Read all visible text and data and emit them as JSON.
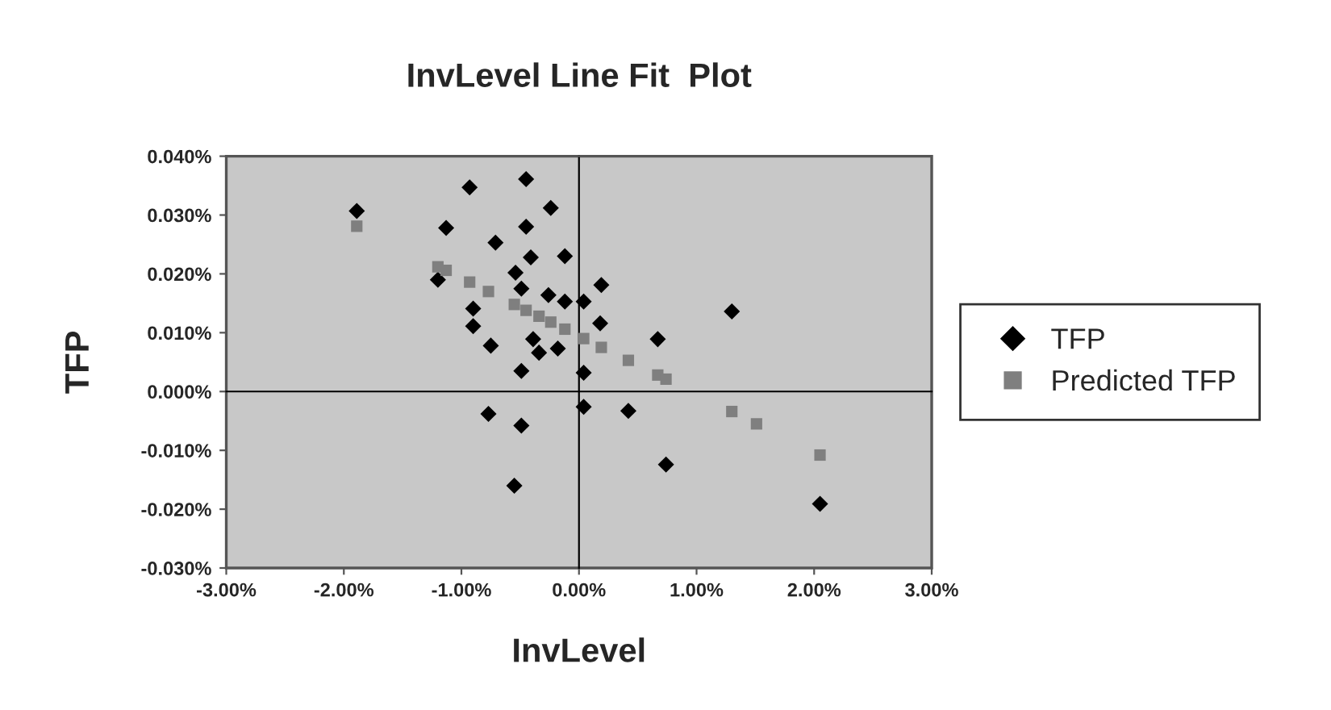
{
  "chart_data": {
    "type": "scatter",
    "title": "InvLevel Line Fit  Plot",
    "xlabel": "InvLevel",
    "ylabel": "TFP",
    "xlim": [
      -3,
      3
    ],
    "xticks": [
      {
        "value": -3,
        "label": "-3.00%"
      },
      {
        "value": -2,
        "label": "-2.00%"
      },
      {
        "value": -1,
        "label": "-1.00%"
      },
      {
        "value": 0,
        "label": "0.00%"
      },
      {
        "value": 1,
        "label": "1.00%"
      },
      {
        "value": 2,
        "label": "2.00%"
      },
      {
        "value": 3,
        "label": "3.00%"
      }
    ],
    "ylim": [
      -0.03,
      0.04
    ],
    "yticks": [
      {
        "value": -0.03,
        "label": "-0.030%"
      },
      {
        "value": -0.02,
        "label": "-0.020%"
      },
      {
        "value": -0.01,
        "label": "-0.010%"
      },
      {
        "value": 0,
        "label": "0.000%"
      },
      {
        "value": 0.01,
        "label": "0.010%"
      },
      {
        "value": 0.02,
        "label": "0.020%"
      },
      {
        "value": 0.03,
        "label": "0.030%"
      },
      {
        "value": 0.04,
        "label": "0.040%"
      }
    ],
    "legend": "right",
    "series": [
      {
        "name": "TFP",
        "color": "#000000",
        "marker": "diamond",
        "x": [
          -1.89,
          -0.93,
          -0.45,
          -1.13,
          -0.24,
          -0.71,
          -0.45,
          -0.41,
          -0.12,
          -0.54,
          -1.2,
          -0.49,
          -0.26,
          -0.9,
          -0.9,
          -0.75,
          -0.39,
          -0.34,
          -0.18,
          -0.49,
          -0.77,
          -0.49,
          -0.55,
          0.19,
          -0.12,
          0.04,
          0.18,
          1.3,
          0.67,
          0.04,
          0.04,
          0.42,
          0.74,
          2.05
        ],
        "values": [
          0.0307,
          0.0347,
          0.0361,
          0.0278,
          0.0312,
          0.0253,
          0.028,
          0.0228,
          0.023,
          0.0202,
          0.019,
          0.0175,
          0.0164,
          0.0141,
          0.0111,
          0.0078,
          0.0089,
          0.0066,
          0.0073,
          0.0035,
          -0.0038,
          -0.0058,
          -0.016,
          0.0181,
          0.0153,
          0.0153,
          0.0116,
          0.0136,
          0.0089,
          0.0032,
          -0.0026,
          -0.0033,
          -0.0124,
          -0.0191
        ]
      },
      {
        "name": "Predicted TFP",
        "color": "#7f7f7f",
        "marker": "square",
        "x": [
          -1.89,
          -1.2,
          -1.13,
          -0.93,
          -0.77,
          -0.55,
          -0.45,
          -0.34,
          -0.24,
          -0.12,
          0.04,
          0.19,
          0.42,
          0.67,
          0.74,
          1.3,
          1.51,
          2.05
        ],
        "values": [
          0.0281,
          0.0212,
          0.0206,
          0.0186,
          0.017,
          0.0148,
          0.0138,
          0.0128,
          0.0118,
          0.0106,
          0.009,
          0.0075,
          0.0053,
          0.0028,
          0.0021,
          -0.0034,
          -0.0055,
          -0.0108
        ]
      }
    ]
  }
}
